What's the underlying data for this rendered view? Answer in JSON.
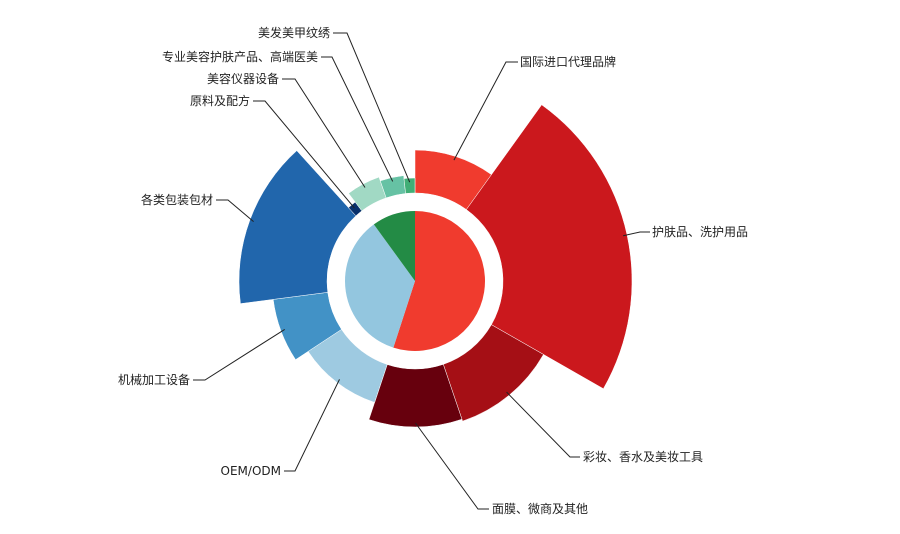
{
  "chart_data": {
    "type": "sunburst",
    "title": "",
    "inner": [
      {
        "name": "",
        "value": 55,
        "color": "#f03b2e"
      },
      {
        "name": "",
        "value": 35,
        "color": "#93c6df"
      },
      {
        "name": "",
        "value": 10,
        "color": "#238b45"
      }
    ],
    "outer": [
      {
        "label": "国际进口代理品牌",
        "group": 0,
        "value": 9.9,
        "magnitude": 131,
        "color": "#f03b2e"
      },
      {
        "label": "护肤品、洗护用品",
        "group": 0,
        "value": 23.3,
        "magnitude": 217,
        "color": "#cb181d"
      },
      {
        "label": "彩妆、香水及美妆工具",
        "group": 0,
        "value": 11.5,
        "magnitude": 148,
        "color": "#a50f15"
      },
      {
        "label": "面膜、微商及其他",
        "group": 0,
        "value": 10.3,
        "magnitude": 146,
        "color": "#67000d"
      },
      {
        "label": "OEM/ODM",
        "group": 1,
        "value": 10.6,
        "magnitude": 128,
        "color": "#9ecae1"
      },
      {
        "label": "机械加工设备",
        "group": 1,
        "value": 7.2,
        "magnitude": 143,
        "color": "#4292c6"
      },
      {
        "label": "各类包装包材",
        "group": 1,
        "value": 15.3,
        "magnitude": 176,
        "color": "#2166ac"
      },
      {
        "label": "原料及配方",
        "group": 1,
        "value": 1.4,
        "magnitude": 99,
        "color": "#08306b"
      },
      {
        "label": "美容仪器设备",
        "group": 2,
        "value": 5.0,
        "magnitude": 110,
        "color": "#a1d9c4"
      },
      {
        "label": "专业美容护肤产品、高端医美",
        "group": 2,
        "value": 3.6,
        "magnitude": 106,
        "color": "#66c2a4"
      },
      {
        "label": "美发美甲纹绣",
        "group": 2,
        "value": 1.7,
        "magnitude": 103,
        "color": "#41ae76"
      }
    ]
  }
}
